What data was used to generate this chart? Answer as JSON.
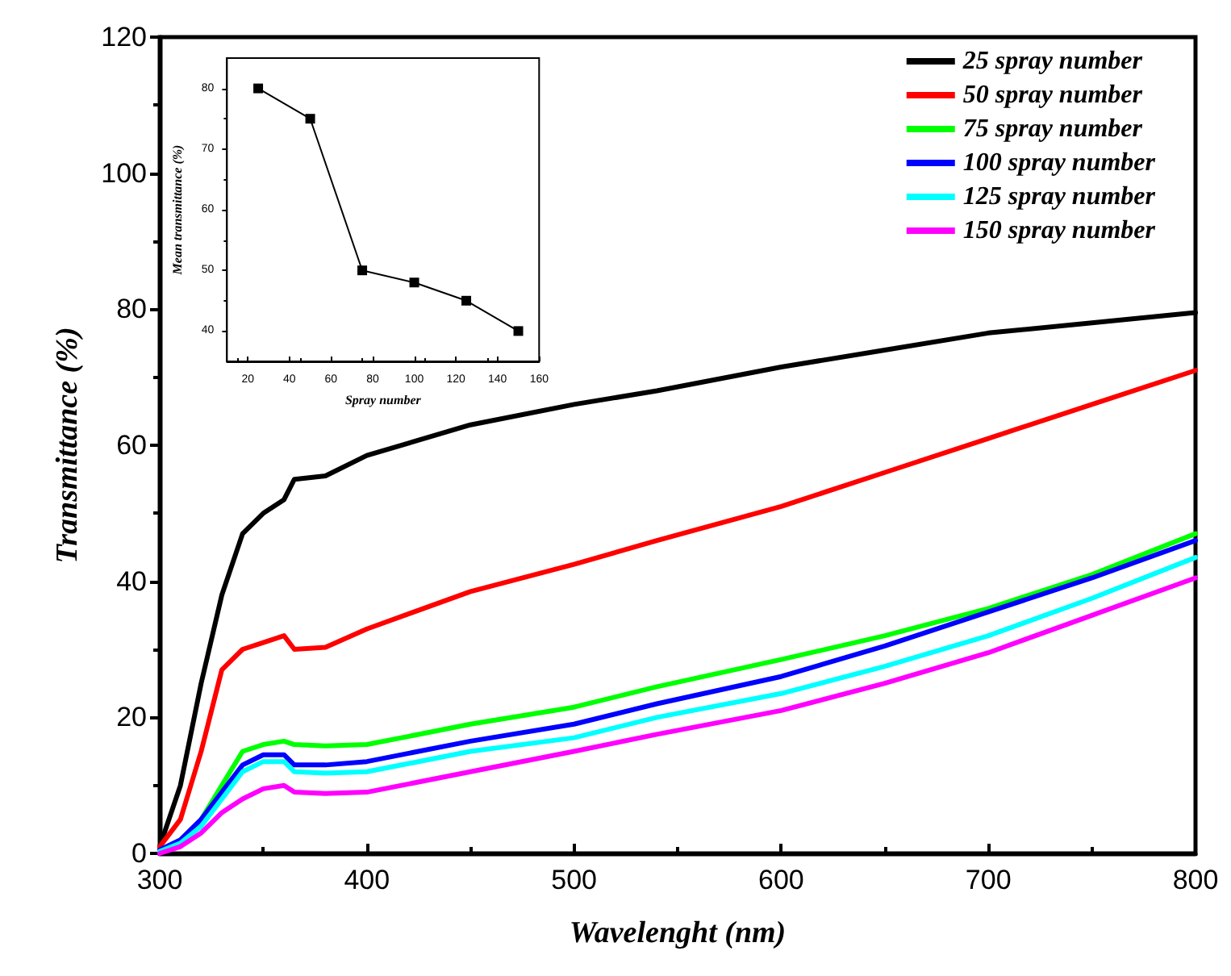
{
  "chart_data": [
    {
      "type": "line",
      "xlabel": "Wavelenght (nm)",
      "ylabel": "Transmittance (%)",
      "xlim": [
        300,
        800
      ],
      "xticks": [
        300,
        400,
        500,
        600,
        700,
        800
      ],
      "ylim": [
        0,
        120
      ],
      "yticks": [
        0,
        20,
        40,
        60,
        80,
        100,
        120
      ],
      "grid": false,
      "legend": "top right",
      "marker": "none",
      "line_style": "solid",
      "x": [
        300,
        310,
        320,
        330,
        340,
        350,
        360,
        365,
        380,
        400,
        450,
        500,
        540,
        600,
        650,
        700,
        750,
        800
      ],
      "series": [
        {
          "name": "25 spray number",
          "color": "#000000",
          "values": [
            1,
            10,
            25,
            38,
            47,
            50,
            52,
            55,
            55.5,
            58.5,
            63,
            66,
            68,
            71.5,
            74,
            76.5,
            78,
            79.5
          ]
        },
        {
          "name": "50 spray number",
          "color": "#ff0000",
          "values": [
            1,
            5,
            15,
            27,
            30,
            31,
            32,
            30,
            30.3,
            33,
            38.5,
            42.5,
            46,
            51,
            56,
            61,
            66,
            71
          ]
        },
        {
          "name": "75 spray number",
          "color": "#00ff00",
          "values": [
            null,
            null,
            5,
            10,
            15,
            16,
            16.5,
            16,
            15.8,
            16,
            19,
            21.5,
            24.5,
            28.5,
            32,
            36,
            41,
            47
          ]
        },
        {
          "name": "100 spray number",
          "color": "#0000ff",
          "values": [
            0.5,
            2,
            5,
            9,
            13,
            14.5,
            14.5,
            13,
            13,
            13.5,
            16.5,
            19,
            22,
            26,
            30.5,
            35.5,
            40.5,
            46
          ]
        },
        {
          "name": "125 spray number",
          "color": "#00ffff",
          "values": [
            0.3,
            1.5,
            4,
            8,
            12,
            13.5,
            13.5,
            12,
            11.8,
            12,
            15,
            17,
            20,
            23.5,
            27.5,
            32,
            37.5,
            43.5
          ]
        },
        {
          "name": "150 spray number",
          "color": "#ff00ff",
          "values": [
            0,
            1,
            3,
            6,
            8,
            9.5,
            10,
            9,
            8.8,
            9,
            12,
            15,
            17.5,
            21,
            25,
            29.5,
            35,
            40.5
          ]
        }
      ]
    },
    {
      "type": "line",
      "xlabel": "Spray number",
      "ylabel": "Mean transmittance (%)",
      "xlim": [
        10,
        160
      ],
      "xticks": [
        20,
        40,
        60,
        80,
        100,
        120,
        140,
        160
      ],
      "ylim": [
        35,
        85
      ],
      "yticks": [
        40,
        50,
        60,
        70,
        80
      ],
      "grid": false,
      "legend": false,
      "marker": "square",
      "line_style": "solid",
      "x": [
        25,
        50,
        75,
        100,
        125,
        150
      ],
      "series": [
        {
          "color": "#000000",
          "values": [
            80,
            75,
            50,
            48,
            45,
            40
          ]
        }
      ]
    }
  ]
}
